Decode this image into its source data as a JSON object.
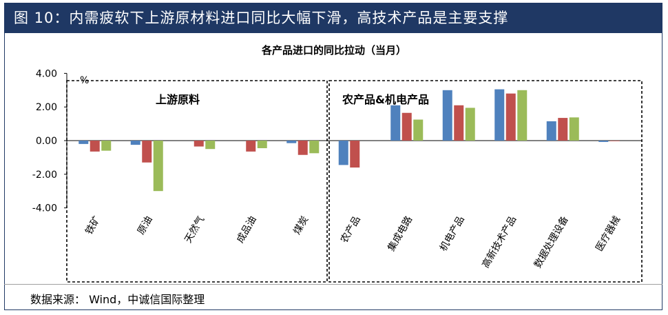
{
  "figure_title": "图 10：内需疲软下上游原材料进口同比大幅下滑，高技术产品是主要支撑",
  "source_note": "数据来源： Wind，中诚信国际整理",
  "chart_data": {
    "type": "bar",
    "title": "各产品进口的同比拉动（当月）",
    "ylabel": "%",
    "ylim": [
      -4,
      4
    ],
    "yticks": [
      4,
      2,
      0,
      -2,
      -4
    ],
    "ytick_labels": [
      "4.00",
      "2.00",
      "0.00",
      "-2.00",
      "-4.00"
    ],
    "categories": [
      "铁矿",
      "原油",
      "天然气",
      "成品油",
      "煤炭",
      "农产品",
      "集成电路",
      "机电产品",
      "高新技术产品",
      "数据处理设备",
      "医疗器械"
    ],
    "groups": [
      {
        "label": "上游原料",
        "from": 0,
        "to": 4
      },
      {
        "label": "农产品&机电产品",
        "from": 5,
        "to": 10
      }
    ],
    "series": [
      {
        "color": "#4f81bd",
        "values": [
          -0.2,
          -0.25,
          0.0,
          0.0,
          -0.15,
          -1.45,
          2.1,
          3.0,
          3.05,
          1.15,
          -0.08
        ]
      },
      {
        "color": "#c0504d",
        "values": [
          -0.65,
          -1.3,
          -0.35,
          -0.65,
          -0.85,
          -1.6,
          1.65,
          2.1,
          2.8,
          1.35,
          -0.02
        ]
      },
      {
        "color": "#9bbb59",
        "values": [
          -0.6,
          -3.0,
          -0.5,
          -0.45,
          -0.75,
          0.0,
          1.25,
          1.95,
          3.0,
          1.38,
          0.0
        ]
      }
    ]
  }
}
